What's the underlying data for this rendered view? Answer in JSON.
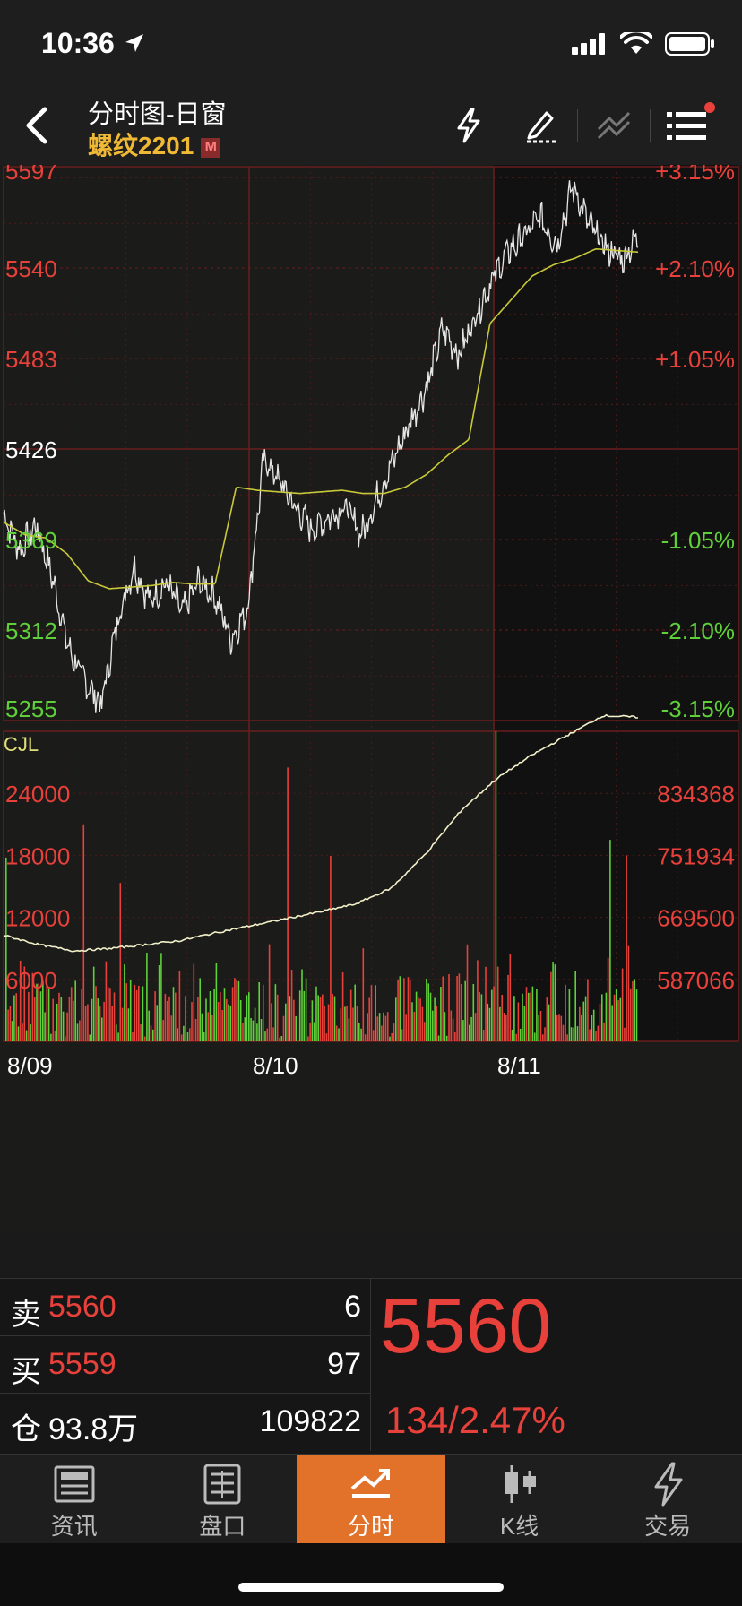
{
  "status": {
    "time": "10:36"
  },
  "header": {
    "title": "分时图-日窗",
    "contract": "螺纹2201",
    "badge": "M"
  },
  "price_axis": {
    "left_labels": [
      {
        "text": "5597",
        "color": "#e8403a"
      },
      {
        "text": "5540",
        "color": "#e8403a"
      },
      {
        "text": "5483",
        "color": "#e8403a"
      },
      {
        "text": "5426",
        "color": "#ffffff"
      },
      {
        "text": "5369",
        "color": "#5fcf3a"
      },
      {
        "text": "5312",
        "color": "#5fcf3a"
      },
      {
        "text": "5255",
        "color": "#5fcf3a"
      }
    ],
    "right_labels": [
      {
        "text": "+3.15%",
        "color": "#e8403a"
      },
      {
        "text": "+2.10%",
        "color": "#e8403a"
      },
      {
        "text": "+1.05%",
        "color": "#e8403a"
      },
      {
        "text": "",
        "color": "#ffffff"
      },
      {
        "text": "-1.05%",
        "color": "#5fcf3a"
      },
      {
        "text": "-2.10%",
        "color": "#5fcf3a"
      },
      {
        "text": "-3.15%",
        "color": "#5fcf3a"
      }
    ]
  },
  "volume_axis": {
    "title": "CJL",
    "left_labels": [
      "24000",
      "18000",
      "12000",
      "6000"
    ],
    "right_labels": [
      "834368",
      "751934",
      "669500",
      "587066"
    ]
  },
  "dates": [
    "8/09",
    "8/10",
    "8/11"
  ],
  "chart_data": {
    "type": "line",
    "price_range": [
      5255,
      5597
    ],
    "reference_price": 5426,
    "volume_range": [
      0,
      30000
    ],
    "open_interest_range": [
      504632,
      900000
    ],
    "price_keypoints": [
      5385,
      5362,
      5378,
      5345,
      5300,
      5280,
      5265,
      5318,
      5352,
      5330,
      5342,
      5323,
      5343,
      5333,
      5306,
      5326,
      5420,
      5405,
      5388,
      5375,
      5383,
      5390,
      5372,
      5396,
      5420,
      5443,
      5465,
      5502,
      5485,
      5510,
      5532,
      5550,
      5560,
      5572,
      5555,
      5592,
      5567,
      5553,
      5545,
      5560
    ],
    "avg_keypoints": [
      5380,
      5372,
      5370,
      5360,
      5343,
      5338,
      5339,
      5340,
      5342,
      5341,
      5341,
      5402,
      5400,
      5399,
      5398,
      5399,
      5400,
      5398,
      5398,
      5402,
      5410,
      5422,
      5432,
      5505,
      5520,
      5535,
      5542,
      5546,
      5552,
      5551,
      5550
    ],
    "open_interest_keypoints": [
      640000,
      628000,
      620000,
      623000,
      628000,
      633000,
      643000,
      652000,
      661000,
      670000,
      680000,
      700000,
      745000,
      800000,
      840000,
      870000,
      895000,
      920000,
      918000
    ]
  },
  "quote": {
    "sell_label": "卖",
    "sell_price": "5560",
    "sell_qty": "6",
    "buy_label": "买",
    "buy_price": "5559",
    "buy_qty": "97",
    "oi_label": "仓",
    "oi_value": "93.8万",
    "oi_qty": "109822",
    "last_price": "5560",
    "change": "134/2.47%"
  },
  "tabs": [
    "资讯",
    "盘口",
    "分时",
    "K线",
    "交易"
  ]
}
